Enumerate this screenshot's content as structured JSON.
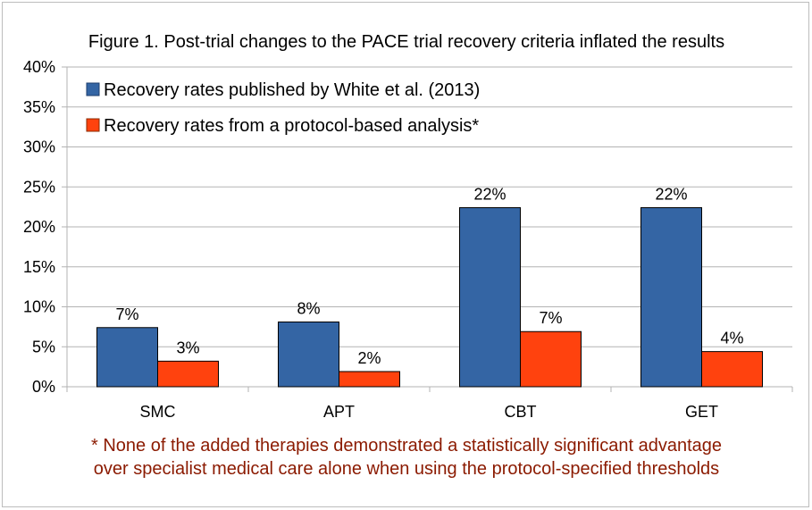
{
  "chart_data": {
    "type": "bar",
    "title": "Figure 1. Post-trial changes to the PACE trial recovery criteria inflated the results",
    "categories": [
      "SMC",
      "APT",
      "CBT",
      "GET"
    ],
    "series": [
      {
        "name": "Recovery rates published by White et al. (2013)",
        "color": "#3465a4",
        "values": [
          7.4,
          8.1,
          22.4,
          22.4
        ],
        "labels": [
          "7%",
          "8%",
          "22%",
          "22%"
        ]
      },
      {
        "name": "Recovery rates from a protocol-based analysis*",
        "color": "#ff420e",
        "values": [
          3.2,
          1.9,
          6.9,
          4.4
        ],
        "labels": [
          "3%",
          "2%",
          "7%",
          "4%"
        ]
      }
    ],
    "ylim": [
      0,
      40
    ],
    "yticks": [
      "0%",
      "5%",
      "10%",
      "15%",
      "20%",
      "25%",
      "30%",
      "35%",
      "40%"
    ],
    "grid": true,
    "legend_position": "top-left",
    "footnote": [
      "* None of the added therapies demonstrated a statistically significant advantage",
      "over specialist medical care alone when using the protocol-specified thresholds"
    ]
  }
}
